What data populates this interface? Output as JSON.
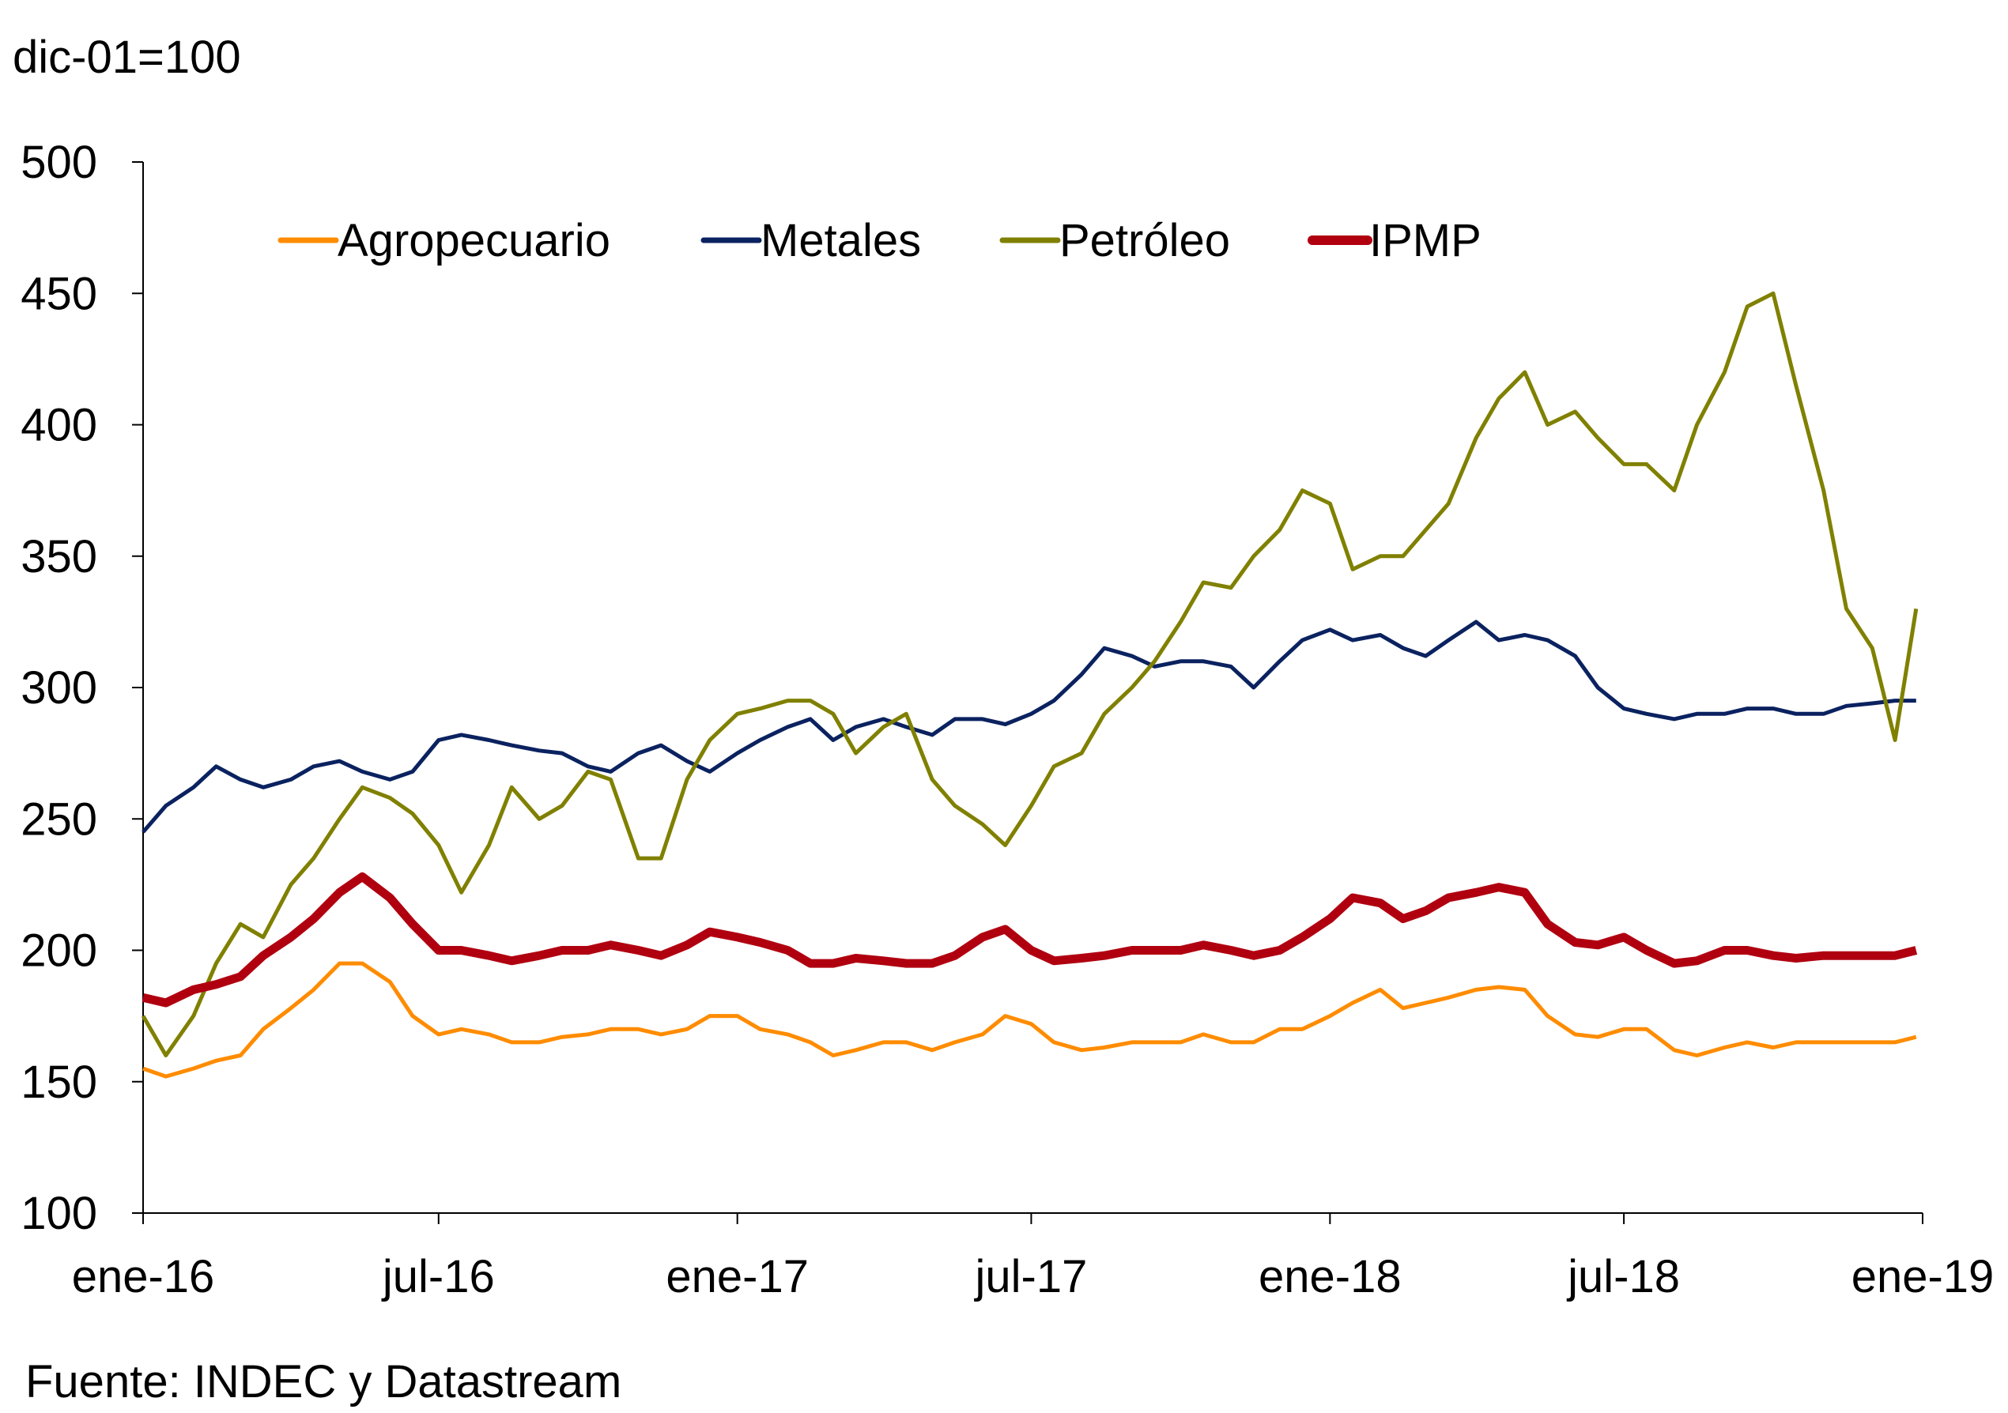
{
  "chart_data": {
    "type": "line",
    "unit_label": "dic-01=100",
    "source": "Fuente: INDEC y Datastream",
    "ylim": [
      100,
      500
    ],
    "yticks": [
      100,
      150,
      200,
      250,
      300,
      350,
      400,
      450,
      500
    ],
    "xlim": [
      "2016-01-01",
      "2019-01-01"
    ],
    "xticks": [
      {
        "date": "2016-01-01",
        "label": "ene-16"
      },
      {
        "date": "2016-07-01",
        "label": "jul-16"
      },
      {
        "date": "2017-01-01",
        "label": "ene-17"
      },
      {
        "date": "2017-07-01",
        "label": "jul-17"
      },
      {
        "date": "2018-01-01",
        "label": "ene-18"
      },
      {
        "date": "2018-07-01",
        "label": "jul-18"
      },
      {
        "date": "2019-01-01",
        "label": "ene-19"
      }
    ],
    "grid": false,
    "legend_position": "top",
    "x": [
      "2016-01-01",
      "2016-01-15",
      "2016-02-01",
      "2016-02-15",
      "2016-03-01",
      "2016-03-15",
      "2016-04-01",
      "2016-04-15",
      "2016-05-01",
      "2016-05-15",
      "2016-06-01",
      "2016-06-15",
      "2016-07-01",
      "2016-07-15",
      "2016-08-01",
      "2016-08-15",
      "2016-09-01",
      "2016-09-15",
      "2016-10-01",
      "2016-10-15",
      "2016-11-01",
      "2016-11-15",
      "2016-12-01",
      "2016-12-15",
      "2017-01-01",
      "2017-01-15",
      "2017-02-01",
      "2017-02-15",
      "2017-03-01",
      "2017-03-15",
      "2017-04-01",
      "2017-04-15",
      "2017-05-01",
      "2017-05-15",
      "2017-06-01",
      "2017-06-15",
      "2017-07-01",
      "2017-07-15",
      "2017-08-01",
      "2017-08-15",
      "2017-09-01",
      "2017-09-15",
      "2017-10-01",
      "2017-10-15",
      "2017-11-01",
      "2017-11-15",
      "2017-12-01",
      "2017-12-15",
      "2018-01-01",
      "2018-01-15",
      "2018-02-01",
      "2018-02-15",
      "2018-03-01",
      "2018-03-15",
      "2018-04-01",
      "2018-04-15",
      "2018-05-01",
      "2018-05-15",
      "2018-06-01",
      "2018-06-15",
      "2018-07-01",
      "2018-07-15",
      "2018-08-01",
      "2018-08-15",
      "2018-09-01",
      "2018-09-15",
      "2018-10-01",
      "2018-10-15",
      "2018-11-01",
      "2018-11-15",
      "2018-12-01",
      "2018-12-15",
      "2018-12-28"
    ],
    "series": [
      {
        "name": "Agropecuario",
        "color": "#FF8C00",
        "values": [
          155,
          152,
          155,
          158,
          160,
          170,
          178,
          185,
          195,
          195,
          188,
          175,
          168,
          170,
          168,
          165,
          165,
          167,
          168,
          170,
          170,
          168,
          170,
          175,
          175,
          170,
          168,
          165,
          160,
          162,
          165,
          165,
          162,
          165,
          168,
          175,
          172,
          165,
          162,
          163,
          165,
          165,
          165,
          168,
          165,
          165,
          170,
          170,
          175,
          180,
          185,
          178,
          180,
          182,
          185,
          186,
          185,
          175,
          168,
          167,
          170,
          170,
          162,
          160,
          163,
          165,
          163,
          165,
          165,
          165,
          165,
          165,
          167
        ]
      },
      {
        "name": "Metales",
        "color": "#0B2260",
        "values": [
          245,
          255,
          262,
          270,
          265,
          262,
          265,
          270,
          272,
          268,
          265,
          268,
          280,
          282,
          280,
          278,
          276,
          275,
          270,
          268,
          275,
          278,
          272,
          268,
          275,
          280,
          285,
          288,
          280,
          285,
          288,
          285,
          282,
          288,
          288,
          286,
          290,
          295,
          305,
          315,
          312,
          308,
          310,
          310,
          308,
          300,
          310,
          318,
          322,
          318,
          320,
          315,
          312,
          318,
          325,
          318,
          320,
          318,
          312,
          300,
          292,
          290,
          288,
          290,
          290,
          292,
          292,
          290,
          290,
          293,
          294,
          295,
          295
        ]
      },
      {
        "name": "Petróleo",
        "color": "#808000",
        "values": [
          175,
          160,
          175,
          195,
          210,
          205,
          225,
          235,
          250,
          262,
          258,
          252,
          240,
          222,
          240,
          262,
          250,
          255,
          268,
          265,
          235,
          235,
          265,
          280,
          290,
          292,
          295,
          295,
          290,
          275,
          285,
          290,
          265,
          255,
          248,
          240,
          255,
          270,
          275,
          290,
          300,
          310,
          325,
          340,
          338,
          350,
          360,
          375,
          370,
          345,
          350,
          350,
          360,
          370,
          395,
          410,
          420,
          400,
          405,
          395,
          385,
          385,
          375,
          400,
          420,
          445,
          450,
          415,
          375,
          330,
          315,
          280,
          330
        ]
      },
      {
        "name": "IPMP",
        "color": "#B00010",
        "values": [
          182,
          180,
          185,
          187,
          190,
          198,
          205,
          212,
          222,
          228,
          220,
          210,
          200,
          200,
          198,
          196,
          198,
          200,
          200,
          202,
          200,
          198,
          202,
          207,
          205,
          203,
          200,
          195,
          195,
          197,
          196,
          195,
          195,
          198,
          205,
          208,
          200,
          196,
          197,
          198,
          200,
          200,
          200,
          202,
          200,
          198,
          200,
          205,
          212,
          220,
          218,
          212,
          215,
          220,
          222,
          224,
          222,
          210,
          203,
          202,
          205,
          200,
          195,
          196,
          200,
          200,
          198,
          197,
          198,
          198,
          198,
          198,
          200
        ]
      }
    ]
  }
}
